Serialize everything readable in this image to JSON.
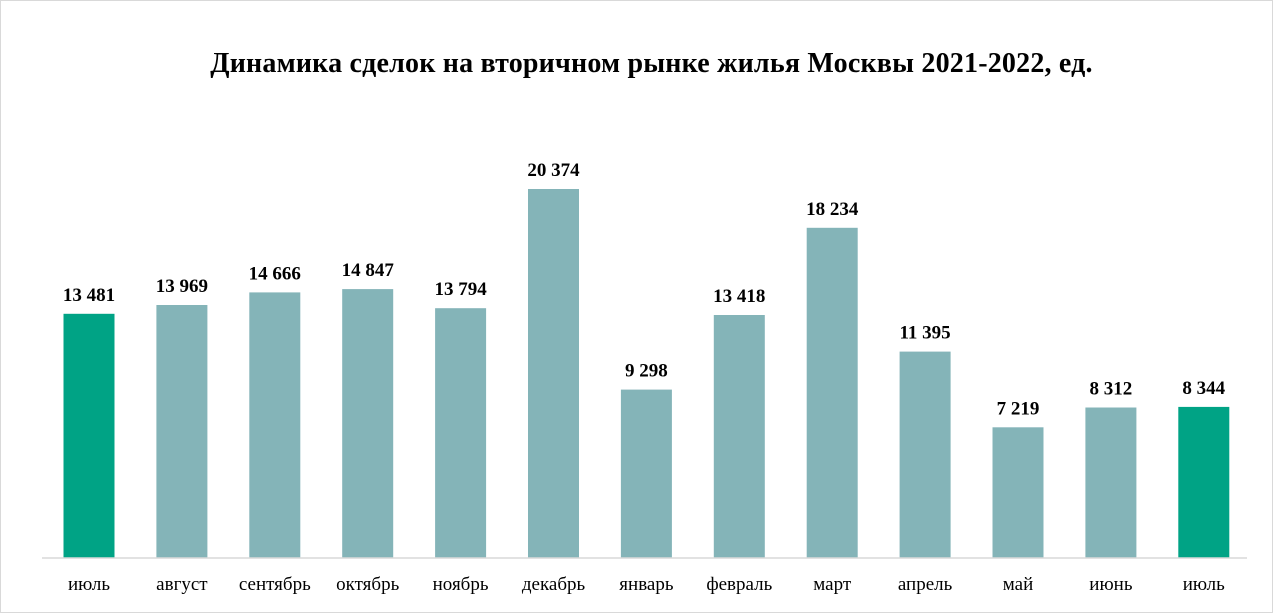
{
  "chart_data": {
    "type": "bar",
    "title": "Динамика сделок на вторичном рынке жилья Москвы 2021-2022, ед.",
    "xlabel": "",
    "ylabel": "",
    "ylim": [
      0,
      22000
    ],
    "grid": false,
    "legend": "none",
    "categories": [
      "июль",
      "август",
      "сентябрь",
      "октябрь",
      "ноябрь",
      "декабрь",
      "январь",
      "февраль",
      "март",
      "апрель",
      "май",
      "июнь",
      "июль"
    ],
    "values": [
      13481,
      13969,
      14666,
      14847,
      13794,
      20374,
      9298,
      13418,
      18234,
      11395,
      7219,
      8312,
      8344
    ],
    "value_labels": [
      "13 481",
      "13 969",
      "14 666",
      "14 847",
      "13 794",
      "20 374",
      "9 298",
      "13 418",
      "18 234",
      "11 395",
      "7 219",
      "8 312",
      "8 344"
    ],
    "highlighted_indices": [
      0,
      12
    ],
    "colors": {
      "bar": "#84B4B8",
      "highlight": "#00A385",
      "axis": "#d9d9d9"
    }
  }
}
